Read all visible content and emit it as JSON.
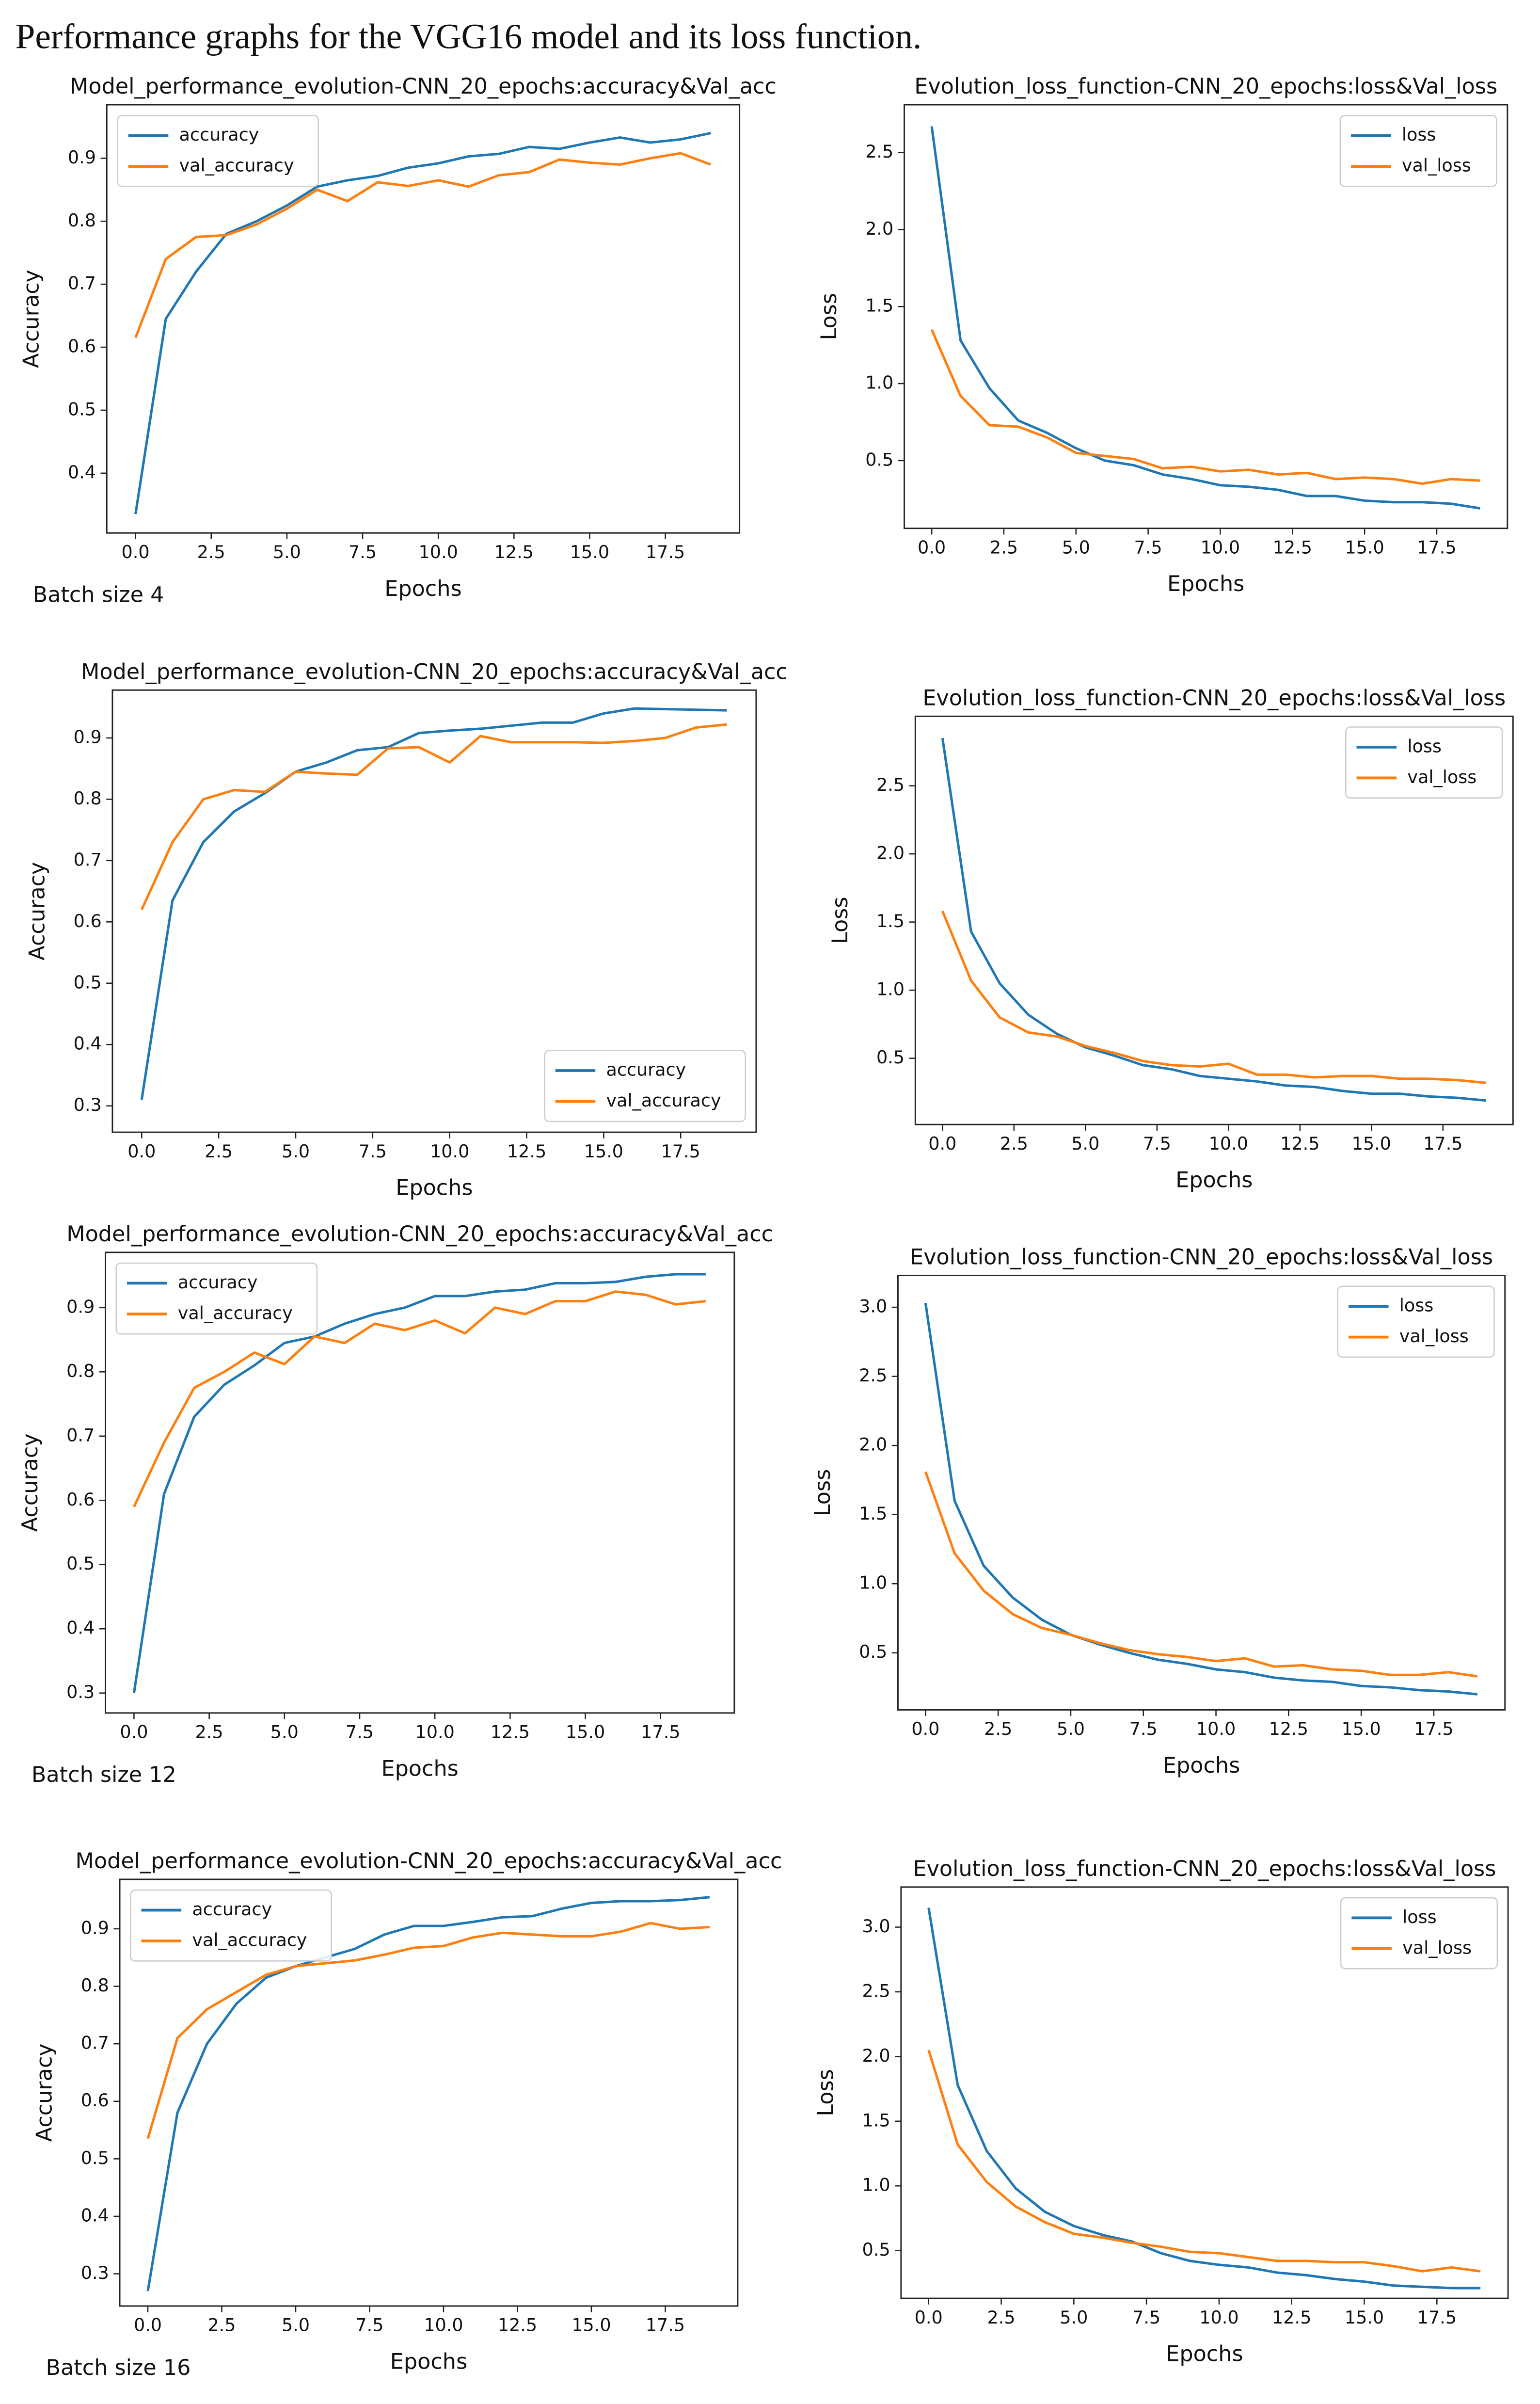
{
  "title": "Performance graphs for the VGG16 model and its loss function.",
  "chart_data": [
    {
      "type": "line",
      "title": "Model_performance_evolution-CNN_20_epochs:accuracy&Val_acc",
      "xlabel": "Epochs",
      "ylabel": "Accuracy",
      "annotation": "Batch size 4",
      "legend": "upper left",
      "x": [
        0,
        1,
        2,
        3,
        4,
        5,
        6,
        7,
        8,
        9,
        10,
        11,
        12,
        13,
        14,
        15,
        16,
        17,
        18,
        19
      ],
      "xlim": [
        -0.95,
        19.95
      ],
      "xticks": [
        {
          "value": 0,
          "label": "0.0"
        },
        2.5,
        {
          "value": 5,
          "label": "5.0"
        },
        7.5,
        {
          "value": 10,
          "label": "10.0"
        },
        12.5,
        {
          "value": 15,
          "label": "15.0"
        },
        17.5
      ],
      "ylim": [
        0.305,
        0.985
      ],
      "yticks": [
        0.4,
        0.5,
        0.6,
        0.7,
        0.8,
        0.9
      ],
      "series": [
        {
          "name": "accuracy",
          "color": "#1f77b4",
          "values": [
            0.335,
            0.645,
            0.72,
            0.78,
            0.8,
            0.825,
            0.855,
            0.865,
            0.872,
            0.885,
            0.892,
            0.903,
            0.907,
            0.918,
            0.915,
            0.925,
            0.933,
            0.925,
            0.93,
            0.94
          ]
        },
        {
          "name": "val_accuracy",
          "color": "#ff7f0e",
          "values": [
            0.615,
            0.74,
            0.775,
            0.778,
            0.795,
            0.82,
            0.85,
            0.832,
            0.862,
            0.856,
            0.865,
            0.855,
            0.873,
            0.878,
            0.898,
            0.893,
            0.89,
            0.9,
            0.908,
            0.89
          ]
        }
      ]
    },
    {
      "type": "line",
      "title": "Evolution_loss_function-CNN_20_epochs:loss&Val_loss",
      "xlabel": "Epochs",
      "ylabel": "Loss",
      "legend": "upper right",
      "x": [
        0,
        1,
        2,
        3,
        4,
        5,
        6,
        7,
        8,
        9,
        10,
        11,
        12,
        13,
        14,
        15,
        16,
        17,
        18,
        19
      ],
      "xlim": [
        -0.95,
        19.95
      ],
      "xticks": [
        {
          "value": 0,
          "label": "0.0"
        },
        2.5,
        {
          "value": 5,
          "label": "5.0"
        },
        7.5,
        {
          "value": 10,
          "label": "10.0"
        },
        12.5,
        {
          "value": 15,
          "label": "15.0"
        },
        17.5
      ],
      "ylim": [
        0.06,
        2.81
      ],
      "yticks": [
        0.5,
        {
          "value": 1,
          "label": "1.0"
        },
        1.5,
        {
          "value": 2,
          "label": "2.0"
        },
        2.5
      ],
      "series": [
        {
          "name": "loss",
          "color": "#1f77b4",
          "values": [
            2.67,
            1.28,
            0.97,
            0.76,
            0.68,
            0.58,
            0.5,
            0.47,
            0.41,
            0.38,
            0.34,
            0.33,
            0.31,
            0.27,
            0.27,
            0.24,
            0.23,
            0.23,
            0.22,
            0.19
          ]
        },
        {
          "name": "val_loss",
          "color": "#ff7f0e",
          "values": [
            1.35,
            0.92,
            0.73,
            0.72,
            0.65,
            0.55,
            0.53,
            0.51,
            0.45,
            0.46,
            0.43,
            0.44,
            0.41,
            0.42,
            0.38,
            0.39,
            0.38,
            0.35,
            0.38,
            0.37
          ]
        }
      ]
    },
    {
      "type": "line",
      "title": "Model_performance_evolution-CNN_20_epochs:accuracy&Val_acc",
      "xlabel": "Epochs",
      "ylabel": "Accuracy",
      "legend": "lower right",
      "x": [
        0,
        1,
        2,
        3,
        4,
        5,
        6,
        7,
        8,
        9,
        10,
        11,
        12,
        13,
        14,
        15,
        16,
        17,
        18,
        19
      ],
      "xlim": [
        -0.95,
        19.95
      ],
      "xticks": [
        {
          "value": 0,
          "label": "0.0"
        },
        2.5,
        {
          "value": 5,
          "label": "5.0"
        },
        7.5,
        {
          "value": 10,
          "label": "10.0"
        },
        12.5,
        {
          "value": 15,
          "label": "15.0"
        },
        17.5
      ],
      "ylim": [
        0.257,
        0.978
      ],
      "yticks": [
        0.3,
        0.4,
        0.5,
        0.6,
        0.7,
        0.8,
        0.9
      ],
      "series": [
        {
          "name": "accuracy",
          "color": "#1f77b4",
          "values": [
            0.31,
            0.635,
            0.73,
            0.78,
            0.81,
            0.845,
            0.86,
            0.88,
            0.885,
            0.908,
            0.912,
            0.915,
            0.92,
            0.925,
            0.925,
            0.94,
            0.948,
            0.947,
            0.946,
            0.945
          ]
        },
        {
          "name": "val_accuracy",
          "color": "#ff7f0e",
          "values": [
            0.62,
            0.73,
            0.8,
            0.815,
            0.812,
            0.845,
            0.842,
            0.84,
            0.883,
            0.885,
            0.86,
            0.903,
            0.893,
            0.893,
            0.893,
            0.892,
            0.895,
            0.9,
            0.917,
            0.922
          ]
        }
      ]
    },
    {
      "type": "line",
      "title": "Evolution_loss_function-CNN_20_epochs:loss&Val_loss",
      "xlabel": "Epochs",
      "ylabel": "Loss",
      "legend": "upper right",
      "x": [
        0,
        1,
        2,
        3,
        4,
        5,
        6,
        7,
        8,
        9,
        10,
        11,
        12,
        13,
        14,
        15,
        16,
        17,
        18,
        19
      ],
      "xlim": [
        -0.95,
        19.95
      ],
      "xticks": [
        {
          "value": 0,
          "label": "0.0"
        },
        2.5,
        {
          "value": 5,
          "label": "5.0"
        },
        7.5,
        {
          "value": 10,
          "label": "10.0"
        },
        12.5,
        {
          "value": 15,
          "label": "15.0"
        },
        17.5
      ],
      "ylim": [
        0.014,
        3.01
      ],
      "yticks": [
        0.5,
        {
          "value": 1,
          "label": "1.0"
        },
        1.5,
        {
          "value": 2,
          "label": "2.0"
        },
        2.5
      ],
      "series": [
        {
          "name": "loss",
          "color": "#1f77b4",
          "values": [
            2.85,
            1.43,
            1.05,
            0.82,
            0.68,
            0.58,
            0.52,
            0.45,
            0.42,
            0.37,
            0.35,
            0.33,
            0.3,
            0.29,
            0.26,
            0.24,
            0.24,
            0.22,
            0.21,
            0.19
          ]
        },
        {
          "name": "val_loss",
          "color": "#ff7f0e",
          "values": [
            1.58,
            1.07,
            0.8,
            0.69,
            0.66,
            0.59,
            0.54,
            0.48,
            0.45,
            0.44,
            0.46,
            0.38,
            0.38,
            0.36,
            0.37,
            0.37,
            0.35,
            0.35,
            0.34,
            0.32
          ]
        }
      ]
    },
    {
      "type": "line",
      "title": "Model_performance_evolution-CNN_20_epochs:accuracy&Val_acc",
      "xlabel": "Epochs",
      "ylabel": "Accuracy",
      "annotation": "Batch size 12",
      "legend": "upper left",
      "x": [
        0,
        1,
        2,
        3,
        4,
        5,
        6,
        7,
        8,
        9,
        10,
        11,
        12,
        13,
        14,
        15,
        16,
        17,
        18,
        19
      ],
      "xlim": [
        -0.95,
        19.95
      ],
      "xticks": [
        {
          "value": 0,
          "label": "0.0"
        },
        2.5,
        {
          "value": 5,
          "label": "5.0"
        },
        7.5,
        {
          "value": 10,
          "label": "10.0"
        },
        12.5,
        {
          "value": 15,
          "label": "15.0"
        },
        17.5
      ],
      "ylim": [
        0.269,
        0.986
      ],
      "yticks": [
        0.3,
        0.4,
        0.5,
        0.6,
        0.7,
        0.8,
        0.9
      ],
      "series": [
        {
          "name": "accuracy",
          "color": "#1f77b4",
          "values": [
            0.3,
            0.61,
            0.73,
            0.78,
            0.81,
            0.845,
            0.855,
            0.875,
            0.89,
            0.9,
            0.918,
            0.918,
            0.925,
            0.928,
            0.938,
            0.938,
            0.94,
            0.948,
            0.952,
            0.952
          ]
        },
        {
          "name": "val_accuracy",
          "color": "#ff7f0e",
          "values": [
            0.59,
            0.69,
            0.775,
            0.8,
            0.83,
            0.812,
            0.855,
            0.845,
            0.875,
            0.865,
            0.88,
            0.86,
            0.9,
            0.89,
            0.91,
            0.91,
            0.925,
            0.92,
            0.905,
            0.91
          ]
        }
      ]
    },
    {
      "type": "line",
      "title": "Evolution_loss_function-CNN_20_epochs:loss&Val_loss",
      "xlabel": "Epochs",
      "ylabel": "Loss",
      "legend": "upper right",
      "x": [
        0,
        1,
        2,
        3,
        4,
        5,
        6,
        7,
        8,
        9,
        10,
        11,
        12,
        13,
        14,
        15,
        16,
        17,
        18,
        19
      ],
      "xlim": [
        -0.95,
        19.95
      ],
      "xticks": [
        {
          "value": 0,
          "label": "0.0"
        },
        2.5,
        {
          "value": 5,
          "label": "5.0"
        },
        7.5,
        {
          "value": 10,
          "label": "10.0"
        },
        12.5,
        {
          "value": 15,
          "label": "15.0"
        },
        17.5
      ],
      "ylim": [
        0.087,
        3.23
      ],
      "yticks": [
        0.5,
        {
          "value": 1,
          "label": "1.0"
        },
        1.5,
        {
          "value": 2,
          "label": "2.0"
        },
        2.5,
        {
          "value": 3,
          "label": "3.0"
        }
      ],
      "series": [
        {
          "name": "loss",
          "color": "#1f77b4",
          "values": [
            3.03,
            1.6,
            1.13,
            0.9,
            0.74,
            0.63,
            0.56,
            0.5,
            0.45,
            0.42,
            0.38,
            0.36,
            0.32,
            0.3,
            0.29,
            0.26,
            0.25,
            0.23,
            0.22,
            0.2
          ]
        },
        {
          "name": "val_loss",
          "color": "#ff7f0e",
          "values": [
            1.81,
            1.22,
            0.95,
            0.78,
            0.68,
            0.63,
            0.57,
            0.52,
            0.49,
            0.47,
            0.44,
            0.46,
            0.4,
            0.41,
            0.38,
            0.37,
            0.34,
            0.34,
            0.36,
            0.33
          ]
        }
      ]
    },
    {
      "type": "line",
      "title": "Model_performance_evolution-CNN_20_epochs:accuracy&Val_acc",
      "xlabel": "Epochs",
      "ylabel": "Accuracy",
      "annotation": "Batch size 16",
      "legend": "upper left",
      "x": [
        0,
        1,
        2,
        3,
        4,
        5,
        6,
        7,
        8,
        9,
        10,
        11,
        12,
        13,
        14,
        15,
        16,
        17,
        18,
        19
      ],
      "xlim": [
        -0.95,
        19.95
      ],
      "xticks": [
        {
          "value": 0,
          "label": "0.0"
        },
        2.5,
        {
          "value": 5,
          "label": "5.0"
        },
        7.5,
        {
          "value": 10,
          "label": "10.0"
        },
        12.5,
        {
          "value": 15,
          "label": "15.0"
        },
        17.5
      ],
      "ylim": [
        0.244,
        0.986
      ],
      "yticks": [
        0.3,
        0.4,
        0.5,
        0.6,
        0.7,
        0.8,
        0.9
      ],
      "series": [
        {
          "name": "accuracy",
          "color": "#1f77b4",
          "values": [
            0.27,
            0.58,
            0.7,
            0.77,
            0.815,
            0.835,
            0.85,
            0.865,
            0.89,
            0.905,
            0.905,
            0.912,
            0.92,
            0.922,
            0.935,
            0.945,
            0.948,
            0.948,
            0.95,
            0.955
          ]
        },
        {
          "name": "val_accuracy",
          "color": "#ff7f0e",
          "values": [
            0.535,
            0.71,
            0.76,
            0.79,
            0.82,
            0.835,
            0.84,
            0.845,
            0.855,
            0.867,
            0.87,
            0.885,
            0.893,
            0.89,
            0.887,
            0.887,
            0.895,
            0.91,
            0.9,
            0.903
          ]
        }
      ]
    },
    {
      "type": "line",
      "title": "Evolution_loss_function-CNN_20_epochs:loss&Val_loss",
      "xlabel": "Epochs",
      "ylabel": "Loss",
      "legend": "upper right",
      "x": [
        0,
        1,
        2,
        3,
        4,
        5,
        6,
        7,
        8,
        9,
        10,
        11,
        12,
        13,
        14,
        15,
        16,
        17,
        18,
        19
      ],
      "xlim": [
        -0.95,
        19.95
      ],
      "xticks": [
        {
          "value": 0,
          "label": "0.0"
        },
        2.5,
        {
          "value": 5,
          "label": "5.0"
        },
        7.5,
        {
          "value": 10,
          "label": "10.0"
        },
        12.5,
        {
          "value": 15,
          "label": "15.0"
        },
        17.5
      ],
      "ylim": [
        0.131,
        3.31
      ],
      "yticks": [
        0.5,
        {
          "value": 1,
          "label": "1.0"
        },
        1.5,
        {
          "value": 2,
          "label": "2.0"
        },
        2.5,
        {
          "value": 3,
          "label": "3.0"
        }
      ],
      "series": [
        {
          "name": "loss",
          "color": "#1f77b4",
          "values": [
            3.15,
            1.78,
            1.27,
            0.98,
            0.8,
            0.69,
            0.62,
            0.57,
            0.48,
            0.42,
            0.39,
            0.37,
            0.33,
            0.31,
            0.28,
            0.26,
            0.23,
            0.22,
            0.21,
            0.21
          ]
        },
        {
          "name": "val_loss",
          "color": "#ff7f0e",
          "values": [
            2.05,
            1.32,
            1.03,
            0.84,
            0.72,
            0.63,
            0.6,
            0.56,
            0.53,
            0.49,
            0.48,
            0.45,
            0.42,
            0.42,
            0.41,
            0.41,
            0.38,
            0.34,
            0.37,
            0.34
          ]
        }
      ]
    }
  ]
}
